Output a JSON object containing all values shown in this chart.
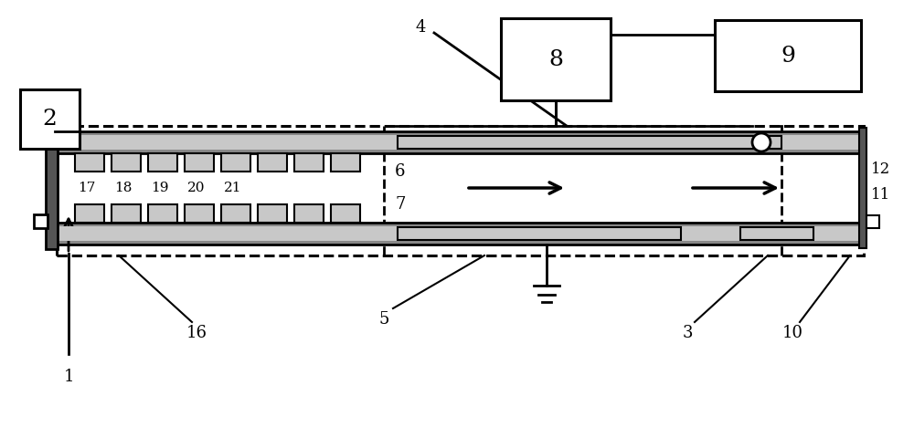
{
  "bg_color": "#ffffff",
  "line_color": "#000000",
  "gray_dark": "#888888",
  "gray_light": "#c8c8c8",
  "white": "#ffffff",
  "fig_width": 10.0,
  "fig_height": 4.68,
  "dpi": 100
}
